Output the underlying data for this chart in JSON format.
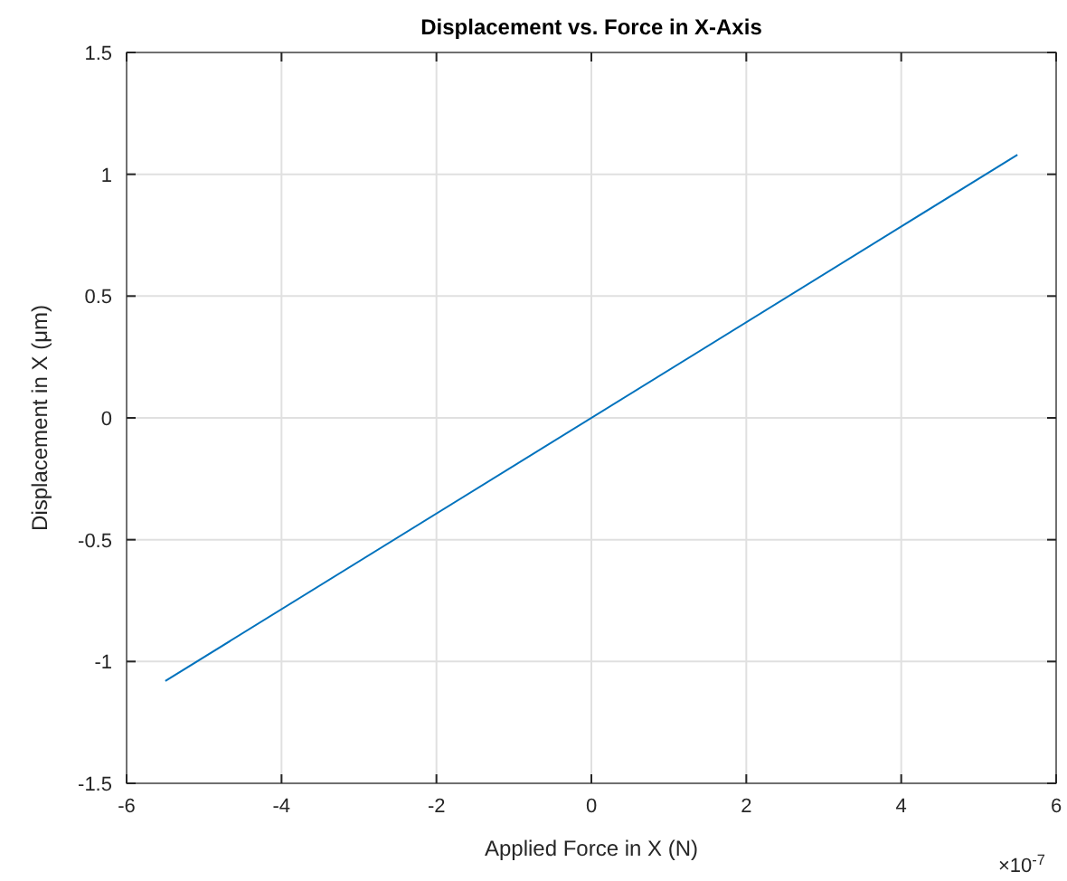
{
  "chart_data": {
    "type": "line",
    "title": "Displacement vs. Force in X-Axis",
    "xlabel": "Applied Force in X (N)",
    "ylabel": "Displacement in X (μm)",
    "annotations": [
      "×10$^{-7}$"
    ],
    "series": [
      {
        "color": "#0072bd",
        "x": [
          -5.5,
          5.5
        ],
        "values": [
          -1.08,
          1.08
        ]
      }
    ],
    "xlim": [
      -6,
      6
    ],
    "xticks": [
      -6,
      -4,
      -2,
      0,
      2,
      4,
      6
    ],
    "ylim": [
      -1.5,
      1.5
    ],
    "yticks": [
      -1.5,
      -1,
      -0.5,
      0,
      0.5,
      1,
      1.5
    ],
    "grid": true,
    "line_style": "solid",
    "marker": "none"
  }
}
